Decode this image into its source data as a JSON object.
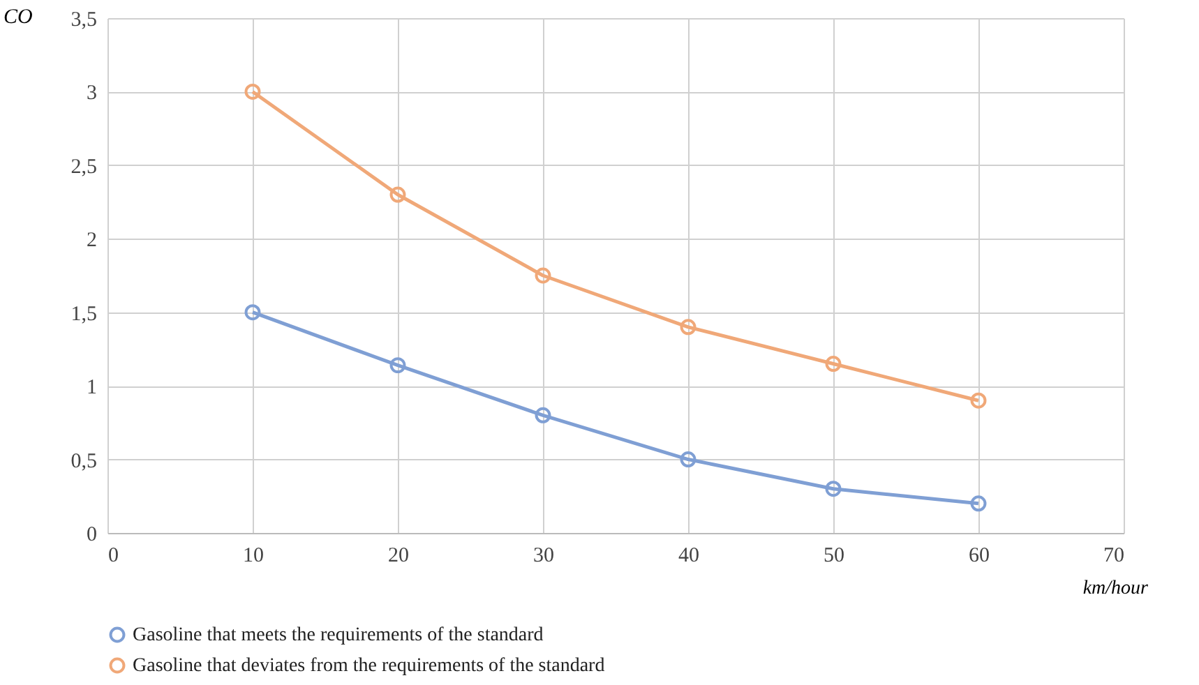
{
  "chart_data": {
    "type": "line",
    "xlabel": "km/hour",
    "ylabel": "CO",
    "x": [
      10,
      20,
      30,
      40,
      50,
      60
    ],
    "series": [
      {
        "name": "Gasoline that meets the requirements of the standard",
        "color": "#7f9fd4",
        "values": [
          1.5,
          1.14,
          0.8,
          0.5,
          0.3,
          0.2
        ]
      },
      {
        "name": "Gasoline that deviates from the requirements of the standard",
        "color": "#f0a878",
        "values": [
          3.0,
          2.3,
          1.75,
          1.4,
          1.15,
          0.9
        ]
      }
    ],
    "xlim": [
      0,
      70
    ],
    "xticks": [
      0,
      10,
      20,
      30,
      40,
      50,
      60,
      70
    ],
    "ylim": [
      0,
      3.5
    ],
    "yticks": [
      0,
      {
        "value": 0.5,
        "label": "0,5"
      },
      1,
      {
        "value": 1.5,
        "label": "1,5"
      },
      2,
      {
        "value": 2.5,
        "label": "2,5"
      },
      3,
      {
        "value": 3.5,
        "label": "3,5"
      }
    ],
    "grid": true,
    "legend": "bottom",
    "marker": "circle",
    "line_style": "solid"
  }
}
